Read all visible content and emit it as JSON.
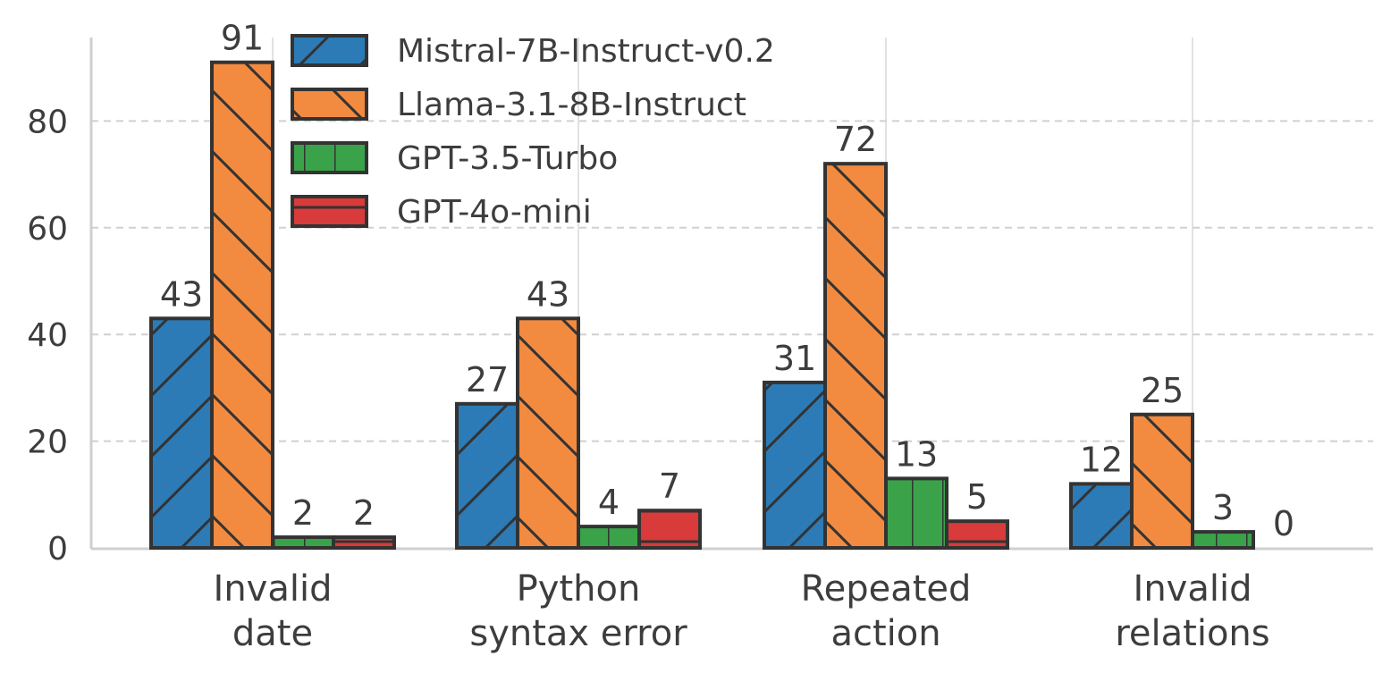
{
  "chart_data": {
    "type": "bar",
    "title": "",
    "xlabel": "",
    "ylabel": "",
    "categories": [
      [
        "Invalid",
        "date"
      ],
      [
        "Python",
        "syntax error"
      ],
      [
        "Repeated",
        "action"
      ],
      [
        "Invalid",
        "relations"
      ]
    ],
    "series": [
      {
        "name": "Mistral-7B-Instruct-v0.2",
        "values": [
          43,
          27,
          31,
          12
        ],
        "color": "#2c7bb6",
        "hatch": "forward-diagonal"
      },
      {
        "name": "Llama-3.1-8B-Instruct",
        "values": [
          91,
          43,
          72,
          25
        ],
        "color": "#f28a3f",
        "hatch": "back-diagonal"
      },
      {
        "name": "GPT-3.5-Turbo",
        "values": [
          2,
          4,
          13,
          3
        ],
        "color": "#3aa34a",
        "hatch": "vertical"
      },
      {
        "name": "GPT-4o-mini",
        "values": [
          2,
          7,
          5,
          0
        ],
        "color": "#d93a3a",
        "hatch": "horizontal"
      }
    ],
    "yticks": [
      0,
      20,
      40,
      60,
      80
    ],
    "ylim": [
      0,
      96
    ],
    "grid": "horizontal dashed",
    "legend": "top-left"
  }
}
